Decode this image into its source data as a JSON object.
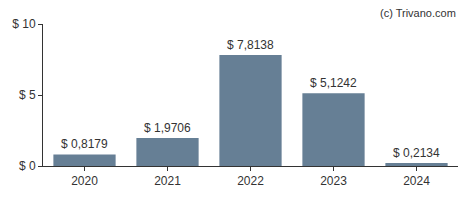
{
  "chart_data": {
    "type": "bar",
    "categories": [
      "2020",
      "2021",
      "2022",
      "2023",
      "2024"
    ],
    "values": [
      0.8179,
      1.9706,
      7.8138,
      5.1242,
      0.2134
    ],
    "value_labels": [
      "$ 0,8179",
      "$ 1,9706",
      "$ 7,8138",
      "$ 5,1242",
      "$ 0,2134"
    ],
    "data_labels": true,
    "color": "#667f95",
    "ylim": [
      0,
      10
    ],
    "yticks": [
      {
        "value": 0,
        "label": "$ 0"
      },
      {
        "value": 5,
        "label": "$ 5"
      },
      {
        "value": 10,
        "label": "$ 10"
      }
    ],
    "grid": false,
    "annotations": [
      "(c) Trivano.com"
    ]
  }
}
